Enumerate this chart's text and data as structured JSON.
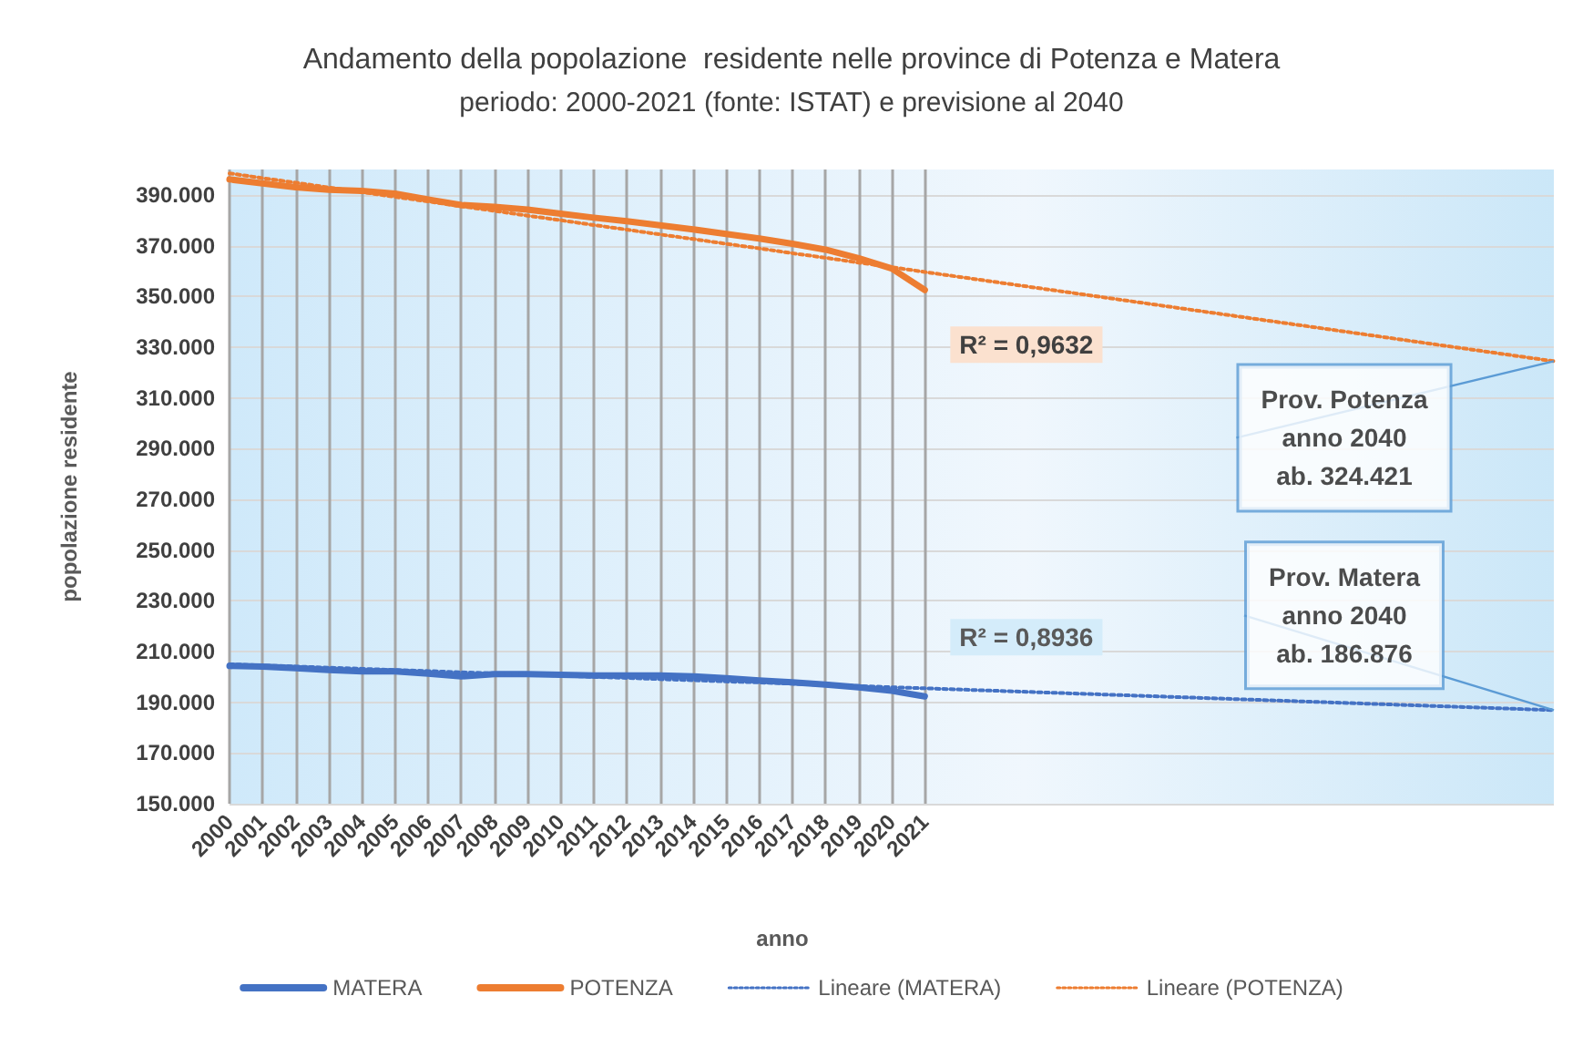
{
  "chart_data": {
    "type": "line",
    "title": "Andamento della popolazione  residente nelle province di Potenza e Matera",
    "subtitle": "periodo: 2000-2021 (fonte: ISTAT) e previsione al 2040",
    "xlabel": "anno",
    "ylabel": "popolazione residente",
    "x": [
      2000,
      2001,
      2002,
      2003,
      2004,
      2005,
      2006,
      2007,
      2008,
      2009,
      2010,
      2011,
      2012,
      2013,
      2014,
      2015,
      2016,
      2017,
      2018,
      2019,
      2020,
      2021,
      2040
    ],
    "series": [
      {
        "name": "MATERA",
        "color": "#4472c4",
        "values": [
          204300,
          204100,
          203400,
          202700,
          202200,
          202200,
          201300,
          200200,
          201100,
          201100,
          200800,
          200600,
          200600,
          200600,
          200200,
          199500,
          198600,
          197900,
          197000,
          195900,
          194500,
          192300,
          null
        ]
      },
      {
        "name": "POTENZA",
        "color": "#ed7d31",
        "values": [
          396100,
          394500,
          393000,
          392000,
          391600,
          390500,
          388200,
          386000,
          385300,
          384200,
          382600,
          381000,
          379600,
          378000,
          376400,
          374600,
          372800,
          370700,
          368400,
          365000,
          361000,
          352500,
          null
        ]
      },
      {
        "name": "Lineare (MATERA)",
        "color": "#4472c4",
        "line_style": "dotted",
        "values": [
          205000,
          204500,
          204100,
          203600,
          203200,
          202700,
          202300,
          201800,
          201400,
          200900,
          200500,
          200000,
          199600,
          199100,
          198700,
          198200,
          197800,
          197300,
          196800,
          196400,
          195900,
          195500,
          186876
        ]
      },
      {
        "name": "Lineare (POTENZA)",
        "color": "#ed7d31",
        "line_style": "dotted",
        "values": [
          398500,
          396600,
          394800,
          392900,
          391100,
          389200,
          387400,
          385500,
          383700,
          381800,
          380000,
          378100,
          376300,
          374400,
          372600,
          370700,
          368900,
          367000,
          365200,
          363300,
          361500,
          359600,
          324421
        ]
      }
    ],
    "xlim": [
      2000,
      2040
    ],
    "xticks": [
      2000,
      2001,
      2002,
      2003,
      2004,
      2005,
      2006,
      2007,
      2008,
      2009,
      2010,
      2011,
      2012,
      2013,
      2014,
      2015,
      2016,
      2017,
      2018,
      2019,
      2020,
      2021
    ],
    "ylim": [
      150000,
      400000
    ],
    "yticks": [
      {
        "value": 150000,
        "label": "150.000"
      },
      {
        "value": 170000,
        "label": "170.000"
      },
      {
        "value": 190000,
        "label": "190.000"
      },
      {
        "value": 210000,
        "label": "210.000"
      },
      {
        "value": 230000,
        "label": "230.000"
      },
      {
        "value": 250000,
        "label": "250.000"
      },
      {
        "value": 270000,
        "label": "270.000"
      },
      {
        "value": 290000,
        "label": "290.000"
      },
      {
        "value": 310000,
        "label": "310.000"
      },
      {
        "value": 330000,
        "label": "330.000"
      },
      {
        "value": 350000,
        "label": "350.000"
      },
      {
        "value": 370000,
        "label": "370.000"
      },
      {
        "value": 390000,
        "label": "390.000"
      }
    ],
    "grid": true,
    "legend": "bottom",
    "marker": "none",
    "line_style": "solid",
    "annotations": [
      "R² = 0,9632",
      "R² = 0,8936",
      {
        "text": "Prov. Potenza\nanno 2040\nab. 324.421",
        "x": 2040,
        "y": 324421
      },
      {
        "text": "Prov. Matera\nanno 2040\nab. 186.876",
        "x": 2040,
        "y": 186876
      }
    ]
  }
}
